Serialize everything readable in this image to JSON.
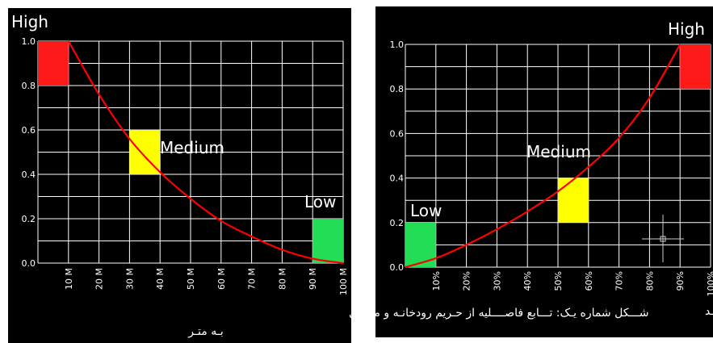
{
  "chart_data": [
    {
      "type": "line",
      "title": "",
      "corner_label": "High",
      "caption": "شـــکل شماره یـک: تـــابع فاصــــلیه از حـریم رودخانـه و مسـیل",
      "caption_line2": "بـه متـر",
      "xlim": [
        0,
        100
      ],
      "ylim": [
        0,
        1
      ],
      "x_tick_labels": [
        "10 M",
        "20 M",
        "30 M",
        "40 M",
        "50 M",
        "60 M",
        "70 M",
        "80 M",
        "90 M",
        "100 M"
      ],
      "y_tick_labels": [
        "0.0",
        "0.2",
        "0.4",
        "0.6",
        "0.8",
        "1.0"
      ],
      "grid": true,
      "series": [
        {
          "color": "#ff0000",
          "x": [
            10,
            20,
            30,
            40,
            50,
            60,
            70,
            80,
            90,
            100
          ],
          "y": [
            1.0,
            0.76,
            0.56,
            0.41,
            0.29,
            0.19,
            0.12,
            0.06,
            0.02,
            0.0
          ]
        }
      ],
      "zones": [
        {
          "label": "",
          "color": "#ff1a1a",
          "x": [
            0,
            10
          ],
          "y": [
            0.8,
            1.0
          ]
        },
        {
          "label": "Medium",
          "color": "#ffff00",
          "x": [
            30,
            40
          ],
          "y": [
            0.4,
            0.6
          ]
        },
        {
          "label": "Low",
          "color": "#22dd55",
          "x": [
            90,
            100
          ],
          "y": [
            0.0,
            0.2
          ]
        }
      ]
    },
    {
      "type": "line",
      "title": "",
      "corner_label": "High",
      "caption": "شــکل شماره دو: تـــابع ضـــریب روانــاب بـه درصـد",
      "xlim": [
        0,
        100
      ],
      "ylim": [
        0,
        1
      ],
      "x_tick_labels": [
        "10%",
        "20%",
        "30%",
        "40%",
        "50%",
        "60%",
        "70%",
        "80%",
        "90%",
        "100%"
      ],
      "y_tick_labels": [
        "0.0",
        "0.2",
        "0.4",
        "0.6",
        "0.8",
        "1.0"
      ],
      "grid": true,
      "series": [
        {
          "color": "#ff0000",
          "x": [
            0,
            10,
            20,
            30,
            40,
            50,
            60,
            70,
            80,
            90
          ],
          "y": [
            0.0,
            0.04,
            0.1,
            0.17,
            0.25,
            0.34,
            0.45,
            0.58,
            0.76,
            1.0
          ]
        }
      ],
      "zones": [
        {
          "label": "Low",
          "color": "#22dd55",
          "x": [
            0,
            10
          ],
          "y": [
            0.0,
            0.2
          ]
        },
        {
          "label": "Medium",
          "color": "#ffff00",
          "x": [
            50,
            60
          ],
          "y": [
            0.2,
            0.4
          ]
        },
        {
          "label": "",
          "color": "#ff1a1a",
          "x": [
            90,
            100
          ],
          "y": [
            0.8,
            1.0
          ]
        }
      ]
    }
  ]
}
